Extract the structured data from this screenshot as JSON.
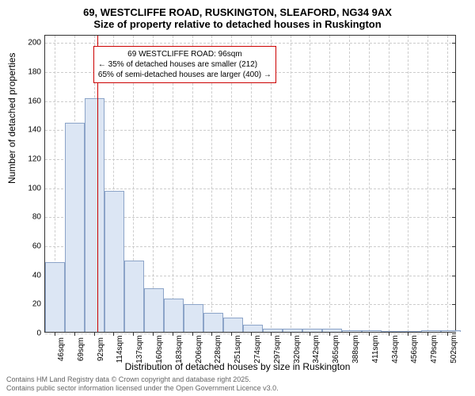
{
  "title_main": "69, WESTCLIFFE ROAD, RUSKINGTON, SLEAFORD, NG34 9AX",
  "title_sub": "Size of property relative to detached houses in Ruskington",
  "y_label": "Number of detached properties",
  "x_label": "Distribution of detached houses by size in Ruskington",
  "footer_line1": "Contains HM Land Registry data © Crown copyright and database right 2025.",
  "footer_line2": "Contains public sector information licensed under the Open Government Licence v3.0.",
  "chart": {
    "type": "histogram",
    "ylim": [
      0,
      205
    ],
    "xlim": [
      35,
      513
    ],
    "y_ticks": [
      0,
      20,
      40,
      60,
      80,
      100,
      120,
      140,
      160,
      180,
      200
    ],
    "x_ticks": [
      46,
      69,
      92,
      114,
      137,
      160,
      183,
      206,
      228,
      251,
      274,
      297,
      320,
      342,
      365,
      388,
      411,
      434,
      456,
      479,
      502
    ],
    "x_tick_suffix": "sqm",
    "bar_width_data": 23,
    "bar_fill": "#dce6f4",
    "bar_stroke": "#8ca4c8",
    "bars": [
      {
        "x": 35,
        "h": 48
      },
      {
        "x": 58,
        "h": 144
      },
      {
        "x": 81,
        "h": 161
      },
      {
        "x": 104,
        "h": 97
      },
      {
        "x": 127,
        "h": 49
      },
      {
        "x": 150,
        "h": 30
      },
      {
        "x": 173,
        "h": 23
      },
      {
        "x": 196,
        "h": 19
      },
      {
        "x": 219,
        "h": 13
      },
      {
        "x": 242,
        "h": 10
      },
      {
        "x": 265,
        "h": 5
      },
      {
        "x": 288,
        "h": 2
      },
      {
        "x": 311,
        "h": 2
      },
      {
        "x": 334,
        "h": 2
      },
      {
        "x": 357,
        "h": 2
      },
      {
        "x": 380,
        "h": 1
      },
      {
        "x": 403,
        "h": 1
      },
      {
        "x": 426,
        "h": 0
      },
      {
        "x": 449,
        "h": 0
      },
      {
        "x": 472,
        "h": 1
      },
      {
        "x": 495,
        "h": 1
      }
    ],
    "marker": {
      "x": 96,
      "color": "#cc0000"
    },
    "annotation": {
      "line1": "69 WESTCLIFFE ROAD: 96sqm",
      "line2": "← 35% of detached houses are smaller (212)",
      "line3": "65% of semi-detached houses are larger (400) →",
      "border_color": "#cc0000",
      "top_data": 198,
      "left_data": 91
    },
    "grid_color": "#cccccc",
    "background": "#ffffff",
    "title_fontsize": 13,
    "label_fontsize": 12,
    "tick_fontsize": 10,
    "annotation_fontsize": 10
  }
}
